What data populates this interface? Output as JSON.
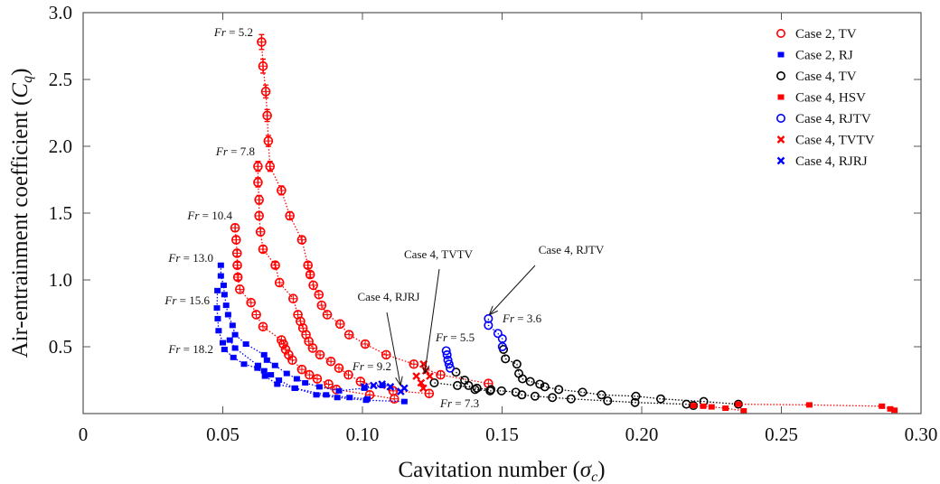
{
  "chart_data": {
    "type": "scatter",
    "title": "",
    "xlabel": "Cavitation number (σc)",
    "ylabel": "Air-entrainment coefficient (Cq)",
    "xlim": [
      0,
      0.3
    ],
    "ylim": [
      0,
      3.0
    ],
    "xticks": [
      "0",
      "0.05",
      "0.10",
      "0.15",
      "0.20",
      "0.25",
      "0.30"
    ],
    "xtick_values": [
      0,
      0.05,
      0.1,
      0.15,
      0.2,
      0.25,
      0.3
    ],
    "yticks": [
      "0.5",
      "1.0",
      "1.5",
      "2.0",
      "2.5",
      "3.0"
    ],
    "ytick_values": [
      0.5,
      1.0,
      1.5,
      2.0,
      2.5,
      3.0
    ],
    "grid": false,
    "legend_placement": "top-right",
    "series": [
      {
        "name": "Case 2, TV",
        "color": "#ff0000",
        "marker": "open-circle-cross",
        "curves": [
          {
            "x": [
              0.0639,
              0.0644,
              0.0654,
              0.0659,
              0.0663,
              0.0669,
              0.071,
              0.074,
              0.0783,
              0.0805,
              0.0813,
              0.0824,
              0.0844,
              0.0854,
              0.0874,
              0.092,
              0.0952,
              0.101,
              0.1085,
              0.1184,
              0.128,
              0.1451
            ],
            "y": [
              2.78,
              2.6,
              2.41,
              2.23,
              2.04,
              1.85,
              1.67,
              1.48,
              1.3,
              1.11,
              1.04,
              0.96,
              0.89,
              0.81,
              0.74,
              0.67,
              0.59,
              0.52,
              0.44,
              0.37,
              0.29,
              0.225
            ]
          },
          {
            "x": [
              0.0626,
              0.0626,
              0.063,
              0.063,
              0.0635,
              0.0644,
              0.0688,
              0.0703,
              0.0752,
              0.0769,
              0.0778,
              0.0787,
              0.0798,
              0.0808,
              0.0822,
              0.0848,
              0.0887,
              0.0916,
              0.095,
              0.0993,
              0.111,
              0.1239
            ],
            "y": [
              1.85,
              1.73,
              1.6,
              1.48,
              1.36,
              1.23,
              1.11,
              0.98,
              0.86,
              0.74,
              0.69,
              0.64,
              0.59,
              0.54,
              0.49,
              0.44,
              0.39,
              0.34,
              0.29,
              0.24,
              0.17,
              0.15
            ]
          },
          {
            "x": [
              0.0544,
              0.0548,
              0.0551,
              0.0552,
              0.0554,
              0.0561,
              0.0601,
              0.062,
              0.0644,
              0.071,
              0.0717,
              0.0725,
              0.0736,
              0.0749,
              0.0783,
              0.081,
              0.0838,
              0.0879,
              0.0907,
              0.1026,
              0.1114
            ],
            "y": [
              1.39,
              1.3,
              1.2,
              1.11,
              1.02,
              0.93,
              0.83,
              0.74,
              0.65,
              0.55,
              0.52,
              0.48,
              0.44,
              0.4,
              0.33,
              0.29,
              0.26,
              0.22,
              0.18,
              0.14,
              0.11
            ]
          }
        ]
      },
      {
        "name": "Case 2, RJ",
        "color": "#0000ff",
        "marker": "dot",
        "curves": [
          {
            "x": [
              0.0493,
              0.0493,
              0.0503,
              0.0506,
              0.0512,
              0.0519,
              0.0535,
              0.0544,
              0.0583,
              0.0648,
              0.0658,
              0.0687,
              0.0729,
              0.0765,
              0.0795,
              0.0846,
              0.0916,
              0.1007,
              0.1072
            ],
            "y": [
              1.11,
              1.03,
              0.96,
              0.89,
              0.81,
              0.74,
              0.66,
              0.59,
              0.52,
              0.44,
              0.4,
              0.36,
              0.3,
              0.26,
              0.23,
              0.2,
              0.17,
              0.19,
              0.21
            ]
          },
          {
            "x": [
              0.0481,
              0.0479,
              0.0482,
              0.0485,
              0.05,
              0.0525,
              0.0544,
              0.0626,
              0.0648,
              0.0672,
              0.0701,
              0.0757,
              0.087,
              0.0954,
              0.1018
            ],
            "y": [
              0.92,
              0.79,
              0.71,
              0.62,
              0.53,
              0.55,
              0.49,
              0.36,
              0.32,
              0.29,
              0.25,
              0.19,
              0.14,
              0.12,
              0.11
            ]
          },
          {
            "x": [
              0.0506,
              0.0538,
              0.0576,
              0.0624,
              0.0651,
              0.0695,
              0.0759,
              0.0835,
              0.091,
              0.1013,
              0.115
            ],
            "y": [
              0.48,
              0.42,
              0.37,
              0.34,
              0.28,
              0.22,
              0.19,
              0.14,
              0.12,
              0.1,
              0.09
            ]
          }
        ]
      },
      {
        "name": "Case 4, TV",
        "color": "#000000",
        "marker": "open-circle",
        "curves": [
          {
            "x": [
              0.1505,
              0.1512,
              0.1553,
              0.156,
              0.1573,
              0.1601,
              0.1635,
              0.1653,
              0.1703,
              0.1788,
              0.1856,
              0.1979,
              0.2068,
              0.2222,
              0.2346
            ],
            "y": [
              0.48,
              0.41,
              0.37,
              0.3,
              0.26,
              0.24,
              0.22,
              0.2,
              0.18,
              0.16,
              0.14,
              0.13,
              0.11,
              0.09,
              0.07
            ]
          },
          {
            "x": [
              0.1335,
              0.1366,
              0.138,
              0.1403,
              0.1457,
              0.1498,
              0.1549,
              0.1571,
              0.1618,
              0.168,
              0.1747,
              0.1878,
              0.1976,
              0.216,
              0.2185
            ],
            "y": [
              0.31,
              0.25,
              0.21,
              0.18,
              0.17,
              0.17,
              0.16,
              0.14,
              0.13,
              0.12,
              0.11,
              0.095,
              0.083,
              0.07,
              0.06
            ]
          },
          {
            "x": [
              0.1257,
              0.134,
              0.141,
              0.146
            ],
            "y": [
              0.23,
              0.21,
              0.19,
              0.18
            ]
          }
        ]
      },
      {
        "name": "Case 4, HSV",
        "color": "#ff0000",
        "marker": "dot",
        "curves": [
          {
            "x": [
              0.2346,
              0.26,
              0.286,
              0.289,
              0.2905
            ],
            "y": [
              0.07,
              0.065,
              0.055,
              0.035,
              0.025
            ]
          },
          {
            "x": [
              0.2185,
              0.222,
              0.225,
              0.23,
              0.2365
            ],
            "y": [
              0.06,
              0.055,
              0.05,
              0.04,
              0.02
            ]
          }
        ]
      },
      {
        "name": "Case 4, RJTV",
        "color": "#0000ff",
        "marker": "open-circle",
        "curves": [
          {
            "x": [
              0.1451,
              0.1451,
              0.1485,
              0.1501,
              0.1501
            ],
            "y": [
              0.71,
              0.66,
              0.6,
              0.56,
              0.5
            ]
          },
          {
            "x": [
              0.13,
              0.1303,
              0.1306,
              0.131,
              0.1314
            ],
            "y": [
              0.47,
              0.44,
              0.4,
              0.37,
              0.34
            ]
          }
        ]
      },
      {
        "name": "Case 4, TVTV",
        "color": "#ff0000",
        "marker": "x",
        "curves": [
          {
            "x": [
              0.1219,
              0.1227,
              0.1241
            ],
            "y": [
              0.37,
              0.32,
              0.28
            ]
          },
          {
            "x": [
              0.1193,
              0.121,
              0.1218
            ],
            "y": [
              0.28,
              0.23,
              0.19
            ]
          }
        ]
      },
      {
        "name": "Case 4, RJRJ",
        "color": "#0000ff",
        "marker": "x",
        "curves": [
          {
            "x": [
              0.1007,
              0.104,
              0.107,
              0.11,
              0.1137,
              0.115
            ],
            "y": [
              0.2,
              0.21,
              0.22,
              0.2,
              0.165,
              0.19
            ]
          }
        ]
      }
    ],
    "fr_labels": [
      "Fr = 5.2",
      "Fr = 7.8",
      "Fr = 10.4",
      "Fr = 13.0",
      "Fr = 15.6",
      "Fr = 18.2",
      "Fr = 9.2",
      "Fr = 3.6",
      "Fr = 5.5",
      "Fr = 7.3"
    ],
    "annotations": [
      "Case 4, RJRJ",
      "Case 4, TVTV",
      "Case 4, RJTV"
    ]
  }
}
